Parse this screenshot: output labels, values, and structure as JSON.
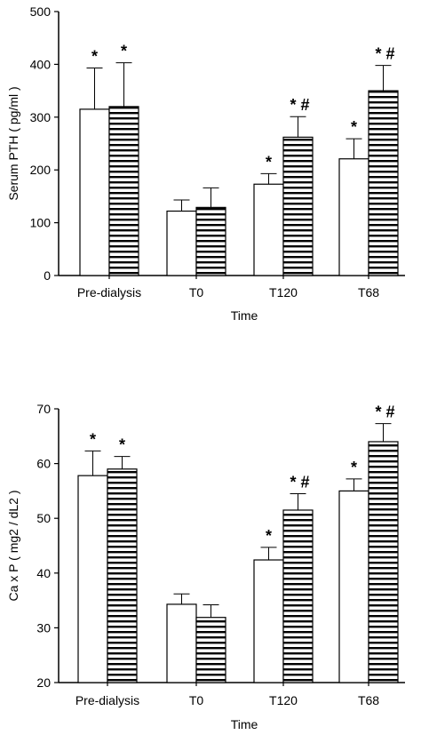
{
  "chart_data": [
    {
      "type": "bar",
      "xlabel": "Time",
      "ylabel": "Serum PTH ( pg/ml )",
      "ylim": [
        0,
        500
      ],
      "yticks": [
        0,
        100,
        200,
        300,
        400,
        500
      ],
      "categories": [
        "Pre-dialysis",
        "T0",
        "T120",
        "T68"
      ],
      "series": [
        {
          "fill": "white",
          "values": [
            315,
            122,
            173,
            221
          ],
          "errors": [
            78,
            21,
            20,
            38
          ]
        },
        {
          "fill": "horizontal-stripes",
          "values": [
            320,
            129,
            262,
            350
          ],
          "errors": [
            83,
            37,
            39,
            48
          ]
        }
      ],
      "annotations": [
        [
          "*",
          "*"
        ],
        [
          "",
          ""
        ],
        [
          "*",
          "* #"
        ],
        [
          "*",
          "* #"
        ]
      ]
    },
    {
      "type": "bar",
      "xlabel": "Time",
      "ylabel": "Ca x P ( mg2 / dL2 )",
      "ylim": [
        20,
        70
      ],
      "yticks": [
        20,
        30,
        40,
        50,
        60,
        70
      ],
      "categories": [
        "Pre-dialysis",
        "T0",
        "T120",
        "T68"
      ],
      "series": [
        {
          "fill": "white",
          "values": [
            57.8,
            34.3,
            42.4,
            55.0
          ],
          "errors": [
            4.5,
            1.9,
            2.3,
            2.2
          ]
        },
        {
          "fill": "horizontal-stripes",
          "values": [
            59.0,
            31.9,
            51.5,
            64.0
          ],
          "errors": [
            2.3,
            2.3,
            3.0,
            3.3
          ]
        }
      ],
      "annotations": [
        [
          "*",
          "*"
        ],
        [
          "",
          ""
        ],
        [
          "*",
          "* #"
        ],
        [
          "*",
          "* #"
        ]
      ]
    }
  ]
}
